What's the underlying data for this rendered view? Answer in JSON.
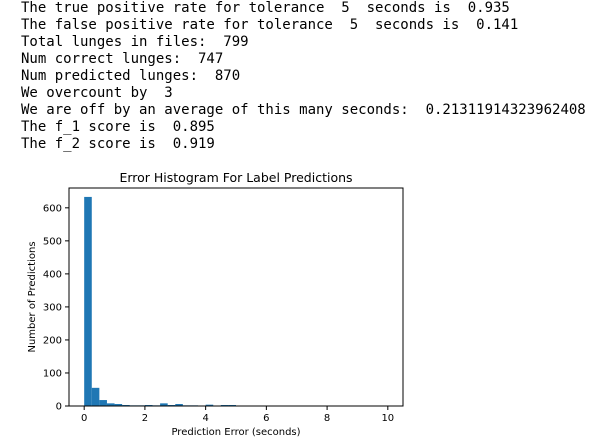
{
  "output": {
    "lines": [
      "The true positive rate for tolerance  5  seconds is  0.935",
      "The false positive rate for tolerance  5  seconds is  0.141",
      "Total lunges in files:  799",
      "Num correct lunges:  747",
      "Num predicted lunges:  870",
      "We overcount by  3",
      "We are off by an average of this many seconds:  0.21311914323962408",
      "The f_1 score is  0.895",
      "The f_2 score is  0.919"
    ]
  },
  "chart_data": {
    "type": "bar",
    "title": "Error Histogram For Label Predictions",
    "xlabel": "Prediction Error (seconds)",
    "ylabel": "Number of Predictions",
    "xlim": [
      -0.5,
      10.5
    ],
    "ylim": [
      0,
      660
    ],
    "xticks": [
      0,
      2,
      4,
      6,
      8,
      10
    ],
    "yticks": [
      0,
      100,
      200,
      300,
      400,
      500,
      600
    ],
    "bar_color": "#1f77b4",
    "bin_width": 0.25,
    "bins": [
      {
        "x": 0.0,
        "count": 633
      },
      {
        "x": 0.25,
        "count": 55
      },
      {
        "x": 0.5,
        "count": 18
      },
      {
        "x": 0.75,
        "count": 8
      },
      {
        "x": 1.0,
        "count": 6
      },
      {
        "x": 1.25,
        "count": 3
      },
      {
        "x": 1.5,
        "count": 2
      },
      {
        "x": 1.75,
        "count": 2
      },
      {
        "x": 2.0,
        "count": 3
      },
      {
        "x": 2.25,
        "count": 2
      },
      {
        "x": 2.5,
        "count": 8
      },
      {
        "x": 2.75,
        "count": 3
      },
      {
        "x": 3.0,
        "count": 6
      },
      {
        "x": 3.25,
        "count": 2
      },
      {
        "x": 3.5,
        "count": 2
      },
      {
        "x": 4.0,
        "count": 4
      },
      {
        "x": 4.5,
        "count": 3
      },
      {
        "x": 4.75,
        "count": 3
      },
      {
        "x": 5.25,
        "count": 1
      },
      {
        "x": 6.25,
        "count": 1
      },
      {
        "x": 7.5,
        "count": 1
      },
      {
        "x": 9.75,
        "count": 1
      }
    ]
  }
}
